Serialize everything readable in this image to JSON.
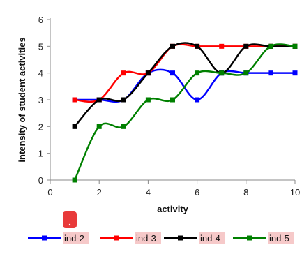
{
  "chart_data": {
    "type": "line",
    "xlabel": "activity",
    "ylabel": "intensity of student activities",
    "xlim": [
      0,
      10
    ],
    "ylim": [
      0,
      6
    ],
    "xticks": [
      0,
      2,
      4,
      6,
      8,
      10
    ],
    "yticks": [
      0,
      1,
      2,
      3,
      4,
      5,
      6
    ],
    "x": [
      1,
      2,
      3,
      4,
      5,
      6,
      7,
      8,
      9,
      10
    ],
    "grid": false,
    "legend_position": "bottom",
    "series": [
      {
        "name": "ind-2",
        "color": "#0000ff",
        "values": [
          3,
          3,
          3,
          4,
          4,
          3,
          4,
          4,
          4,
          4
        ]
      },
      {
        "name": "ind-3",
        "color": "#ff0000",
        "values": [
          3,
          3,
          4,
          4,
          5,
          5,
          5,
          5,
          5,
          5
        ]
      },
      {
        "name": "ind-4",
        "color": "#000000",
        "values": [
          2,
          3,
          3,
          4,
          5,
          5,
          4,
          5,
          5,
          5
        ]
      },
      {
        "name": "ind-5",
        "color": "#008000",
        "values": [
          0,
          2,
          2,
          3,
          3,
          4,
          4,
          4,
          5,
          5
        ]
      }
    ],
    "annotation_color": "#e83a3a"
  }
}
